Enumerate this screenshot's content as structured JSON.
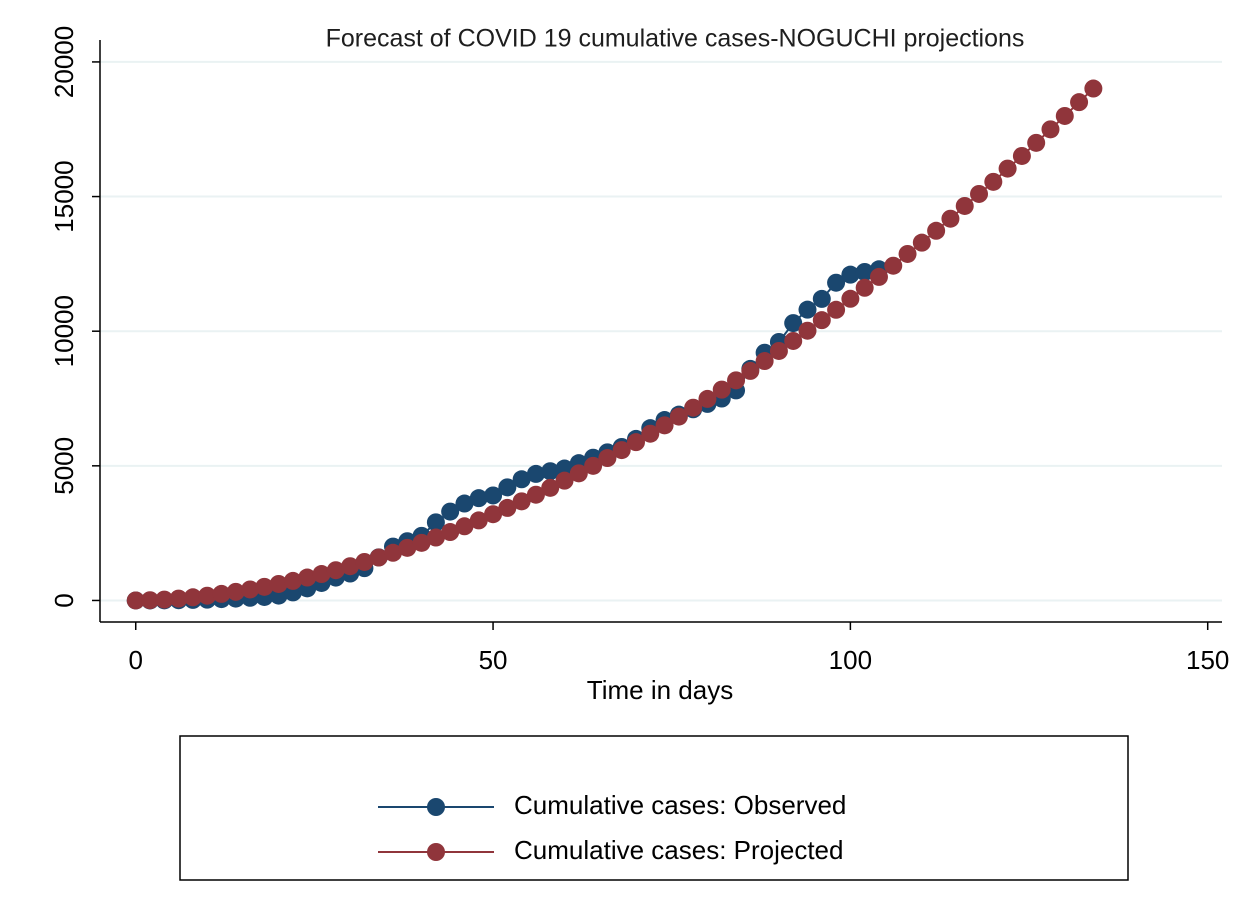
{
  "chart_data": {
    "type": "line",
    "title": "Forecast of COVID 19 cumulative cases-NOGUCHI projections",
    "x_label": "Time in days",
    "xlim": [
      -5,
      152
    ],
    "xticks": [
      0,
      50,
      100,
      150
    ],
    "ylim": [
      -800,
      21000
    ],
    "yticks": [
      0,
      5000,
      10000,
      15000,
      20000
    ],
    "grid": true,
    "legend": "bottom",
    "series": [
      {
        "name": "Cumulative cases: Observed",
        "color": "#1a476f",
        "x": [
          0,
          2,
          4,
          6,
          8,
          10,
          12,
          14,
          16,
          18,
          20,
          22,
          24,
          26,
          28,
          30,
          32,
          34,
          36,
          38,
          40,
          42,
          44,
          46,
          48,
          50,
          52,
          54,
          56,
          58,
          60,
          62,
          64,
          66,
          68,
          70,
          72,
          74,
          76,
          78,
          80,
          82,
          84,
          86,
          88,
          90,
          92,
          94,
          96,
          98,
          100,
          102,
          104
        ],
        "values": [
          0,
          0,
          5,
          10,
          20,
          30,
          50,
          70,
          100,
          130,
          180,
          300,
          450,
          650,
          850,
          1000,
          1200,
          1600,
          2000,
          2200,
          2400,
          2900,
          3300,
          3600,
          3800,
          3900,
          4200,
          4500,
          4700,
          4800,
          4900,
          5100,
          5300,
          5500,
          5700,
          6000,
          6400,
          6700,
          6900,
          7100,
          7300,
          7500,
          7800,
          8600,
          9200,
          9600,
          10300,
          10800,
          11200,
          11800,
          12100,
          12200,
          12300
        ]
      },
      {
        "name": "Cumulative cases: Projected",
        "color": "#90353b",
        "x": [
          0,
          2,
          4,
          6,
          8,
          10,
          12,
          14,
          16,
          18,
          20,
          22,
          24,
          26,
          28,
          30,
          32,
          34,
          36,
          38,
          40,
          42,
          44,
          46,
          48,
          50,
          52,
          54,
          56,
          58,
          60,
          62,
          64,
          66,
          68,
          70,
          72,
          74,
          76,
          78,
          80,
          82,
          84,
          86,
          88,
          90,
          92,
          94,
          96,
          98,
          100,
          102,
          104,
          106,
          108,
          110,
          112,
          114,
          116,
          118,
          120,
          122,
          124,
          126,
          128,
          130,
          132,
          134
        ],
        "values": [
          0,
          10,
          33,
          70,
          117,
          175,
          243,
          321,
          409,
          506,
          613,
          727,
          851,
          982,
          1124,
          1272,
          1430,
          1595,
          1770,
          1953,
          2139,
          2338,
          2541,
          2754,
          2973,
          3203,
          3438,
          3681,
          3927,
          4182,
          4450,
          4721,
          5000,
          5289,
          5585,
          5878,
          6192,
          6504,
          6829,
          7157,
          7486,
          7830,
          8175,
          8525,
          8891,
          9266,
          9638,
          10018,
          10409,
          10795,
          11203,
          11613,
          12015,
          12431,
          12868,
          13289,
          13730,
          14176,
          14651,
          15097,
          15546,
          16038,
          16508,
          16995,
          17496,
          17994,
          18505,
          19011
        ]
      }
    ]
  }
}
